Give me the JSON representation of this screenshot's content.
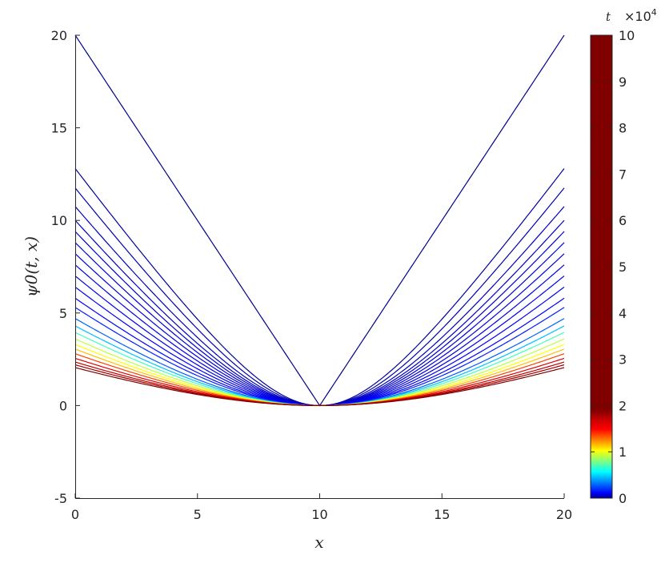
{
  "chart_data": {
    "type": "line",
    "title": "",
    "xlabel": "x",
    "ylabel": "ψ0(t, x)",
    "xlim": [
      0,
      20
    ],
    "ylim": [
      -5,
      20
    ],
    "grid": false,
    "x_ticks": [
      "0",
      "5",
      "10",
      "15",
      "20"
    ],
    "y_ticks": [
      "-5",
      "0",
      "5",
      "10",
      "15",
      "20"
    ],
    "x_center": 10,
    "series": [
      {
        "value_at_x0": 20.0,
        "color": "#00008F"
      },
      {
        "value_at_x0": 12.8,
        "color": "#00009F"
      },
      {
        "value_at_x0": 11.75,
        "color": "#0000AF"
      },
      {
        "value_at_x0": 10.75,
        "color": "#0000BF"
      },
      {
        "value_at_x0": 10.0,
        "color": "#0000C8"
      },
      {
        "value_at_x0": 9.4,
        "color": "#0000D0"
      },
      {
        "value_at_x0": 8.8,
        "color": "#0000D8"
      },
      {
        "value_at_x0": 8.2,
        "color": "#0000E0"
      },
      {
        "value_at_x0": 7.6,
        "color": "#0000E8"
      },
      {
        "value_at_x0": 7.0,
        "color": "#0000F0"
      },
      {
        "value_at_x0": 6.4,
        "color": "#0000F8"
      },
      {
        "value_at_x0": 5.8,
        "color": "#0000FF"
      },
      {
        "value_at_x0": 5.3,
        "color": "#0020FF"
      },
      {
        "value_at_x0": 4.7,
        "color": "#0060FF"
      },
      {
        "value_at_x0": 4.3,
        "color": "#00BFFF"
      },
      {
        "value_at_x0": 3.95,
        "color": "#40FFBF"
      },
      {
        "value_at_x0": 3.6,
        "color": "#BFFF40"
      },
      {
        "value_at_x0": 3.3,
        "color": "#FFFF00"
      },
      {
        "value_at_x0": 3.05,
        "color": "#FFBF00"
      },
      {
        "value_at_x0": 2.8,
        "color": "#FF4000"
      },
      {
        "value_at_x0": 2.55,
        "color": "#E00000"
      },
      {
        "value_at_x0": 2.35,
        "color": "#C00000"
      },
      {
        "value_at_x0": 2.2,
        "color": "#A00000"
      },
      {
        "value_at_x0": 2.05,
        "color": "#800000"
      }
    ],
    "colorbar": {
      "title": "t",
      "multiplier": "×10",
      "exponent": "4",
      "range": [
        0,
        10
      ],
      "ticks": [
        "0",
        "1",
        "2",
        "3",
        "4",
        "5",
        "6",
        "7",
        "8",
        "9",
        "10"
      ],
      "colormap": "jet",
      "gradient_portion": 0.2
    }
  }
}
